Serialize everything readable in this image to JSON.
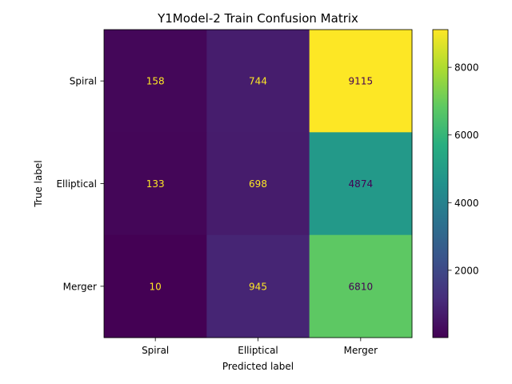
{
  "chart_data": {
    "type": "heatmap",
    "title": "Y1Model-2 Train Confusion Matrix",
    "xlabel": "Predicted label",
    "ylabel": "True label",
    "x_categories": [
      "Spiral",
      "Elliptical",
      "Merger"
    ],
    "y_categories": [
      "Spiral",
      "Elliptical",
      "Merger"
    ],
    "values": [
      [
        158,
        744,
        9115
      ],
      [
        133,
        698,
        4874
      ],
      [
        10,
        945,
        6810
      ]
    ],
    "colormap": "viridis",
    "color_range": [
      10,
      9115
    ],
    "colorbar_ticks": [
      2000,
      4000,
      6000,
      8000
    ],
    "text_colors": {
      "low": "#fde725",
      "high": "#440154"
    },
    "grid": false
  }
}
